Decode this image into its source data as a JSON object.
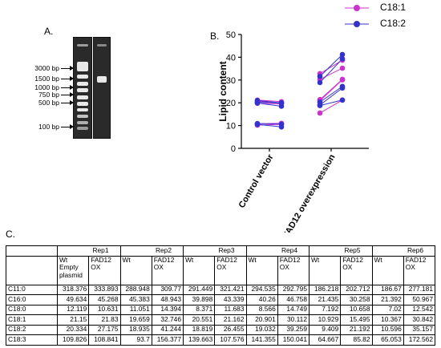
{
  "panels": {
    "a": "A.",
    "b": "B.",
    "c": "C."
  },
  "gel": {
    "ladder_labels": [
      "3000 bp",
      "1500 bp",
      "1000 bp",
      "750 bp",
      "500 bp",
      "100 bp"
    ]
  },
  "chart_data": {
    "type": "scatter",
    "ylabel": "Lipid content",
    "ylim": [
      0,
      50
    ],
    "yticks": [
      0,
      10,
      20,
      30,
      40,
      50
    ],
    "categories": [
      "Control vector",
      "FAD12 overexpression"
    ],
    "grid": false,
    "legend_position": "top-right",
    "series": [
      {
        "name": "C18:1",
        "color": "#cc33cc",
        "pairs": [
          {
            "group": "Control vector",
            "from": 10.2,
            "to": 10.5
          },
          {
            "group": "Control vector",
            "from": 10.8,
            "to": 11.0
          },
          {
            "group": "Control vector",
            "from": 19.8,
            "to": 19.5
          },
          {
            "group": "Control vector",
            "from": 20.6,
            "to": 20.0
          },
          {
            "group": "Control vector",
            "from": 21.2,
            "to": 20.5
          },
          {
            "group": "FAD12 overexpression",
            "from": 15.5,
            "to": 21.2
          },
          {
            "group": "FAD12 overexpression",
            "from": 20.9,
            "to": 30.1
          },
          {
            "group": "FAD12 overexpression",
            "from": 21.4,
            "to": 30.3
          },
          {
            "group": "FAD12 overexpression",
            "from": 30.3,
            "to": 35.2
          },
          {
            "group": "FAD12 overexpression",
            "from": 32.8,
            "to": 38.7
          }
        ]
      },
      {
        "name": "C18:2",
        "color": "#3333cc",
        "pairs": [
          {
            "group": "Control vector",
            "from": 10.5,
            "to": 9.4
          },
          {
            "group": "Control vector",
            "from": 10.9,
            "to": 10.6
          },
          {
            "group": "Control vector",
            "from": 19.9,
            "to": 18.5
          },
          {
            "group": "Control vector",
            "from": 20.3,
            "to": 19.9
          },
          {
            "group": "Control vector",
            "from": 21.0,
            "to": 20.0
          },
          {
            "group": "FAD12 overexpression",
            "from": 18.8,
            "to": 21.2
          },
          {
            "group": "FAD12 overexpression",
            "from": 19.0,
            "to": 26.5
          },
          {
            "group": "FAD12 overexpression",
            "from": 20.3,
            "to": 27.2
          },
          {
            "group": "FAD12 overexpression",
            "from": 28.9,
            "to": 39.3
          },
          {
            "group": "FAD12 overexpression",
            "from": 31.6,
            "to": 41.2
          }
        ]
      }
    ]
  },
  "table": {
    "groups": [
      "Rep1",
      "Rep2",
      "Rep3",
      "Rep4",
      "Rep5",
      "Rep6"
    ],
    "subheaders": [
      "Wt Empty plasmid",
      "FAD12 OX",
      "Wt",
      "FAD12 OX",
      "Wt",
      "FAD12 OX",
      "Wt",
      "FAD12 OX",
      "Wt",
      "FAD12 OX",
      "Wt",
      "FAD12 OX"
    ],
    "rows": [
      {
        "label": "C11:0",
        "values": [
          "318.376",
          "333.893",
          "288.948",
          "309.77",
          "291.449",
          "321.421",
          "294.535",
          "292.795",
          "186.218",
          "202.712",
          "186.67",
          "277.181"
        ]
      },
      {
        "label": "C16:0",
        "values": [
          "49.634",
          "45.268",
          "45.383",
          "48.943",
          "39.898",
          "43.339",
          "40.26",
          "46.758",
          "21.435",
          "30.258",
          "21.392",
          "50.967"
        ]
      },
      {
        "label": "C18:0",
        "values": [
          "12.119",
          "10.631",
          "11.051",
          "14.394",
          "8.371",
          "11.683",
          "8.566",
          "14.749",
          "7.192",
          "10.658",
          "7.02",
          "12.542"
        ]
      },
      {
        "label": "C18:1",
        "values": [
          "21.15",
          "21.83",
          "19.659",
          "32.746",
          "20.551",
          "21.162",
          "20.901",
          "30.112",
          "10.929",
          "15.495",
          "10.367",
          "30.842"
        ]
      },
      {
        "label": "C18:2",
        "values": [
          "20.334",
          "27.175",
          "18.935",
          "41.244",
          "18.819",
          "26.455",
          "19.032",
          "39.259",
          "9.409",
          "21.192",
          "10.596",
          "35.157"
        ]
      },
      {
        "label": "C18:3",
        "values": [
          "109.826",
          "108.841",
          "93.7",
          "156.377",
          "139.663",
          "107.576",
          "141.355",
          "150.041",
          "64.667",
          "85.82",
          "65.053",
          "172.562"
        ]
      }
    ]
  }
}
